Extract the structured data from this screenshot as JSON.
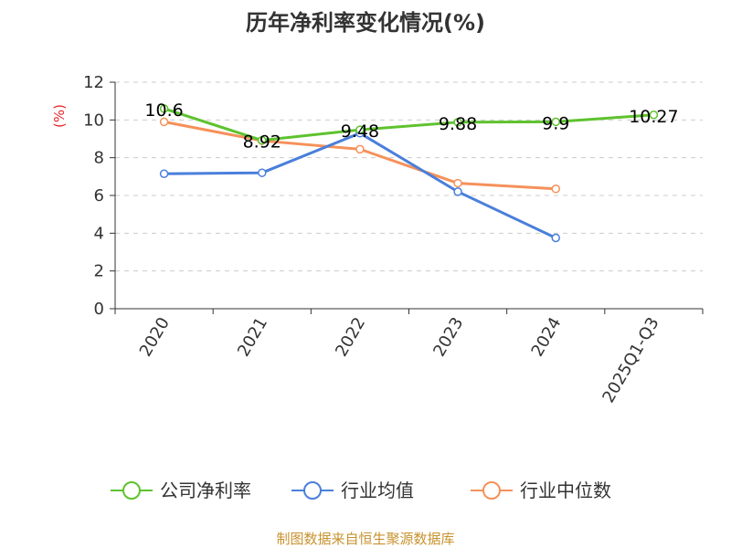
{
  "chart_data": {
    "type": "line",
    "title": "历年净利率变化情况(%)",
    "ylabel": "(%)",
    "xlabel": "",
    "categories": [
      "2020",
      "2021",
      "2022",
      "2023",
      "2024",
      "2025Q1-Q3"
    ],
    "ylim": [
      0,
      12
    ],
    "yticks": [
      0,
      2,
      4,
      6,
      8,
      10,
      12
    ],
    "grid": true,
    "legend_position": "bottom",
    "series": [
      {
        "name": "公司净利率",
        "color": "#5ec22e",
        "values": [
          10.6,
          8.92,
          9.48,
          9.88,
          9.9,
          10.27
        ],
        "labels": [
          "10.6",
          "8.92",
          "9.48",
          "9.88",
          "9.9",
          "10.27"
        ]
      },
      {
        "name": "行业均值",
        "color": "#4a7fdb",
        "values": [
          7.15,
          7.2,
          9.3,
          6.2,
          3.75,
          null
        ]
      },
      {
        "name": "行业中位数",
        "color": "#f5915a",
        "values": [
          9.9,
          8.9,
          8.45,
          6.65,
          6.35,
          null
        ]
      }
    ]
  },
  "source": "制图数据来自恒生聚源数据库"
}
